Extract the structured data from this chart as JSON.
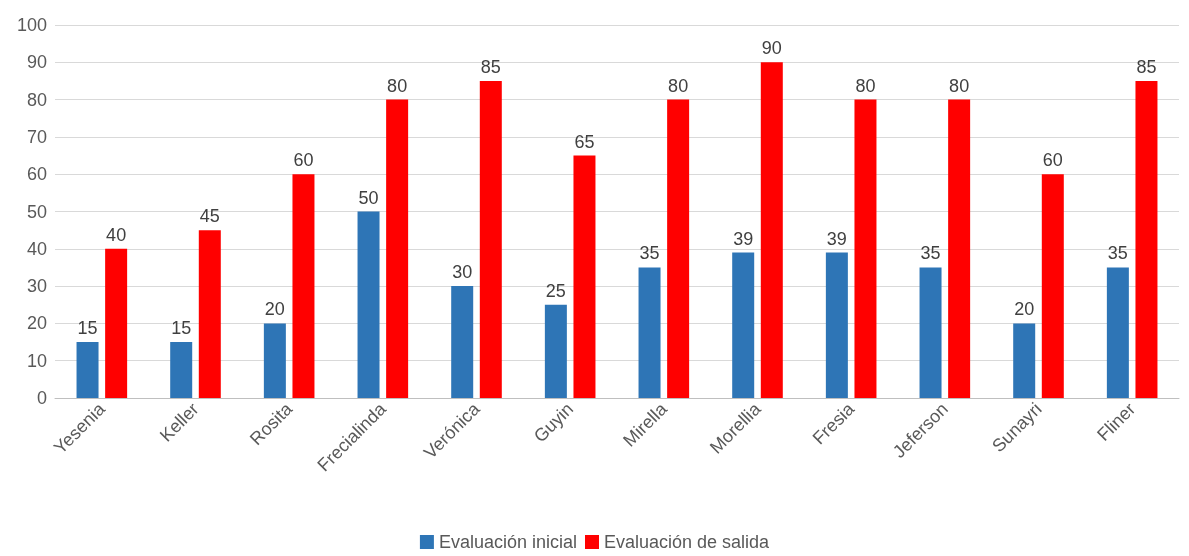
{
  "chart_data": {
    "type": "bar",
    "categories": [
      "Yesenia",
      "Keller",
      "Rosita",
      "Frecialinda",
      "Verónica",
      "Guyin",
      "Mirella",
      "Morellia",
      "Fresia",
      "Jeferson",
      "Sunayri",
      "Fliner"
    ],
    "series": [
      {
        "name": "Evaluación inicial",
        "color": "#2e75b6",
        "values": [
          15,
          15,
          20,
          50,
          30,
          25,
          35,
          39,
          39,
          35,
          20,
          35
        ]
      },
      {
        "name": "Evaluación de salida",
        "color": "#ff0000",
        "values": [
          40,
          45,
          60,
          80,
          85,
          65,
          80,
          90,
          80,
          80,
          60,
          85
        ]
      }
    ],
    "ylim": [
      0,
      100
    ],
    "yticks": [
      0,
      10,
      20,
      30,
      40,
      50,
      60,
      70,
      80,
      90,
      100
    ],
    "grid": "y",
    "legend": "bottom",
    "data_labels": true
  }
}
